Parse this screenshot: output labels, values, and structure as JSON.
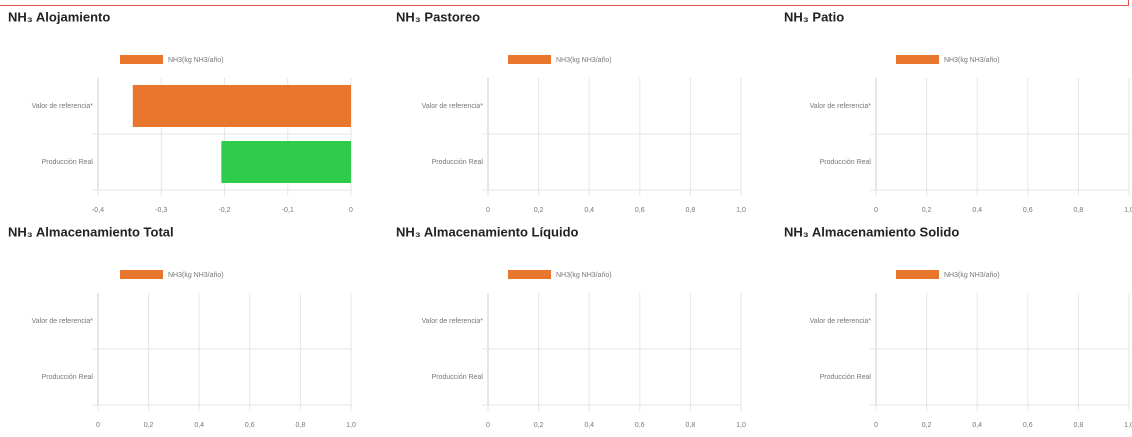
{
  "chart_data": [
    {
      "type": "bar",
      "title": "NH₃ Alojamiento",
      "categories": [
        "Valor de referencia*",
        "Producción Real"
      ],
      "series": [
        {
          "name": "NH3(kg NH3/año)",
          "color": "#e8762d",
          "values": [
            -0.345,
            -0.205
          ],
          "bar_colors": [
            "#e8762d",
            "#2ecc4a"
          ]
        }
      ],
      "xlim": [
        -0.4,
        0
      ],
      "xticks": [
        {
          "value": -0.4,
          "label": "-0,4"
        },
        {
          "value": -0.3,
          "label": "-0,3"
        },
        {
          "value": -0.2,
          "label": "-0,2"
        },
        {
          "value": -0.1,
          "label": "-0,1"
        },
        0
      ],
      "grid": true
    },
    {
      "type": "bar",
      "title": "NH₃ Pastoreo",
      "categories": [
        "Valor de referencia*",
        "Producción Real"
      ],
      "series": [
        {
          "name": "NH3(kg NH3/año)",
          "color": "#e8762d",
          "values": [
            null,
            null
          ]
        }
      ],
      "xlim": [
        0,
        1
      ],
      "xticks": [
        0,
        {
          "value": 0.2,
          "label": "0,2"
        },
        {
          "value": 0.4,
          "label": "0,4"
        },
        {
          "value": 0.6,
          "label": "0,6"
        },
        {
          "value": 0.8,
          "label": "0,8"
        },
        {
          "value": 1,
          "label": "1,0"
        }
      ],
      "grid": true
    },
    {
      "type": "bar",
      "title": "NH₃ Patio",
      "categories": [
        "Valor de referencia*",
        "Producción Real"
      ],
      "series": [
        {
          "name": "NH3(kg NH3/año)",
          "color": "#e8762d",
          "values": [
            null,
            null
          ]
        }
      ],
      "xlim": [
        0,
        1
      ],
      "xticks": [
        0,
        {
          "value": 0.2,
          "label": "0,2"
        },
        {
          "value": 0.4,
          "label": "0,4"
        },
        {
          "value": 0.6,
          "label": "0,6"
        },
        {
          "value": 0.8,
          "label": "0,8"
        },
        {
          "value": 1,
          "label": "1,0"
        }
      ],
      "grid": true
    },
    {
      "type": "bar",
      "title": "NH₃ Almacenamiento Total",
      "categories": [
        "Valor de referencia*",
        "Producción Real"
      ],
      "series": [
        {
          "name": "NH3(kg NH3/año)",
          "color": "#e8762d",
          "values": [
            null,
            null
          ]
        }
      ],
      "xlim": [
        0,
        1
      ],
      "xticks": [
        0,
        {
          "value": 0.2,
          "label": "0,2"
        },
        {
          "value": 0.4,
          "label": "0,4"
        },
        {
          "value": 0.6,
          "label": "0,6"
        },
        {
          "value": 0.8,
          "label": "0,8"
        },
        {
          "value": 1,
          "label": "1,0"
        }
      ],
      "grid": true
    },
    {
      "type": "bar",
      "title": "NH₃ Almacenamiento Líquido",
      "categories": [
        "Valor de referencia*",
        "Producción Real"
      ],
      "series": [
        {
          "name": "NH3(kg NH3/año)",
          "color": "#e8762d",
          "values": [
            null,
            null
          ]
        }
      ],
      "xlim": [
        0,
        1
      ],
      "xticks": [
        0,
        {
          "value": 0.2,
          "label": "0,2"
        },
        {
          "value": 0.4,
          "label": "0,4"
        },
        {
          "value": 0.6,
          "label": "0,6"
        },
        {
          "value": 0.8,
          "label": "0,8"
        },
        {
          "value": 1,
          "label": "1,0"
        }
      ],
      "grid": true
    },
    {
      "type": "bar",
      "title": "NH₃ Almacenamiento Solido",
      "categories": [
        "Valor de referencia*",
        "Producción Real"
      ],
      "series": [
        {
          "name": "NH3(kg NH3/año)",
          "color": "#e8762d",
          "values": [
            null,
            null
          ]
        }
      ],
      "xlim": [
        0,
        1
      ],
      "xticks": [
        0,
        {
          "value": 0.2,
          "label": "0,2"
        },
        {
          "value": 0.4,
          "label": "0,4"
        },
        {
          "value": 0.6,
          "label": "0,6"
        },
        {
          "value": 0.8,
          "label": "0,8"
        },
        {
          "value": 1,
          "label": "1,0"
        }
      ],
      "grid": true
    }
  ]
}
